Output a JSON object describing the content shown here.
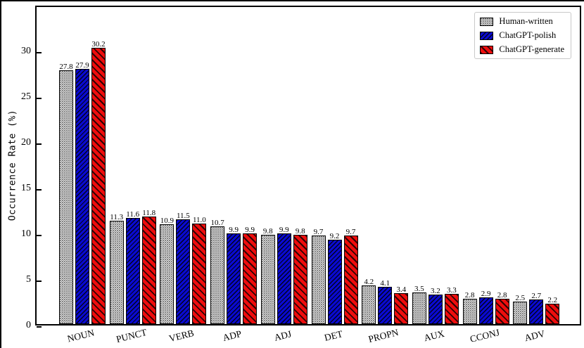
{
  "chart_data": {
    "type": "bar",
    "title": "",
    "xlabel": "",
    "ylabel": "Occurrence Rate (%)",
    "ylim": [
      0,
      35
    ],
    "yticks": [
      0,
      5,
      10,
      15,
      20,
      25,
      30
    ],
    "grid": false,
    "legend_position": "top-right",
    "bar_value_labels": true,
    "value_label_format": "one-decimal",
    "categories": [
      "NOUN",
      "PUNCT",
      "VERB",
      "ADP",
      "ADJ",
      "DET",
      "PROPN",
      "AUX",
      "CCONJ",
      "ADV"
    ],
    "series": [
      {
        "name": "Human-written",
        "fill": "#e6e6e6",
        "hatch": "dots",
        "edge_color": "#000000",
        "values": [
          27.8,
          11.3,
          10.9,
          10.7,
          9.8,
          9.7,
          4.2,
          3.5,
          2.8,
          2.5
        ]
      },
      {
        "name": "ChatGPT-polish",
        "fill": "#0a0ad2",
        "hatch": "/",
        "edge_color": "#000000",
        "values": [
          27.9,
          11.6,
          11.5,
          9.9,
          9.9,
          9.2,
          4.1,
          3.2,
          2.9,
          2.7
        ]
      },
      {
        "name": "ChatGPT-generate",
        "fill": "#ee0d0d",
        "hatch": "\\",
        "edge_color": "#000000",
        "values": [
          30.2,
          11.8,
          11.0,
          9.9,
          9.8,
          9.7,
          3.4,
          3.3,
          2.8,
          2.2
        ]
      }
    ]
  }
}
